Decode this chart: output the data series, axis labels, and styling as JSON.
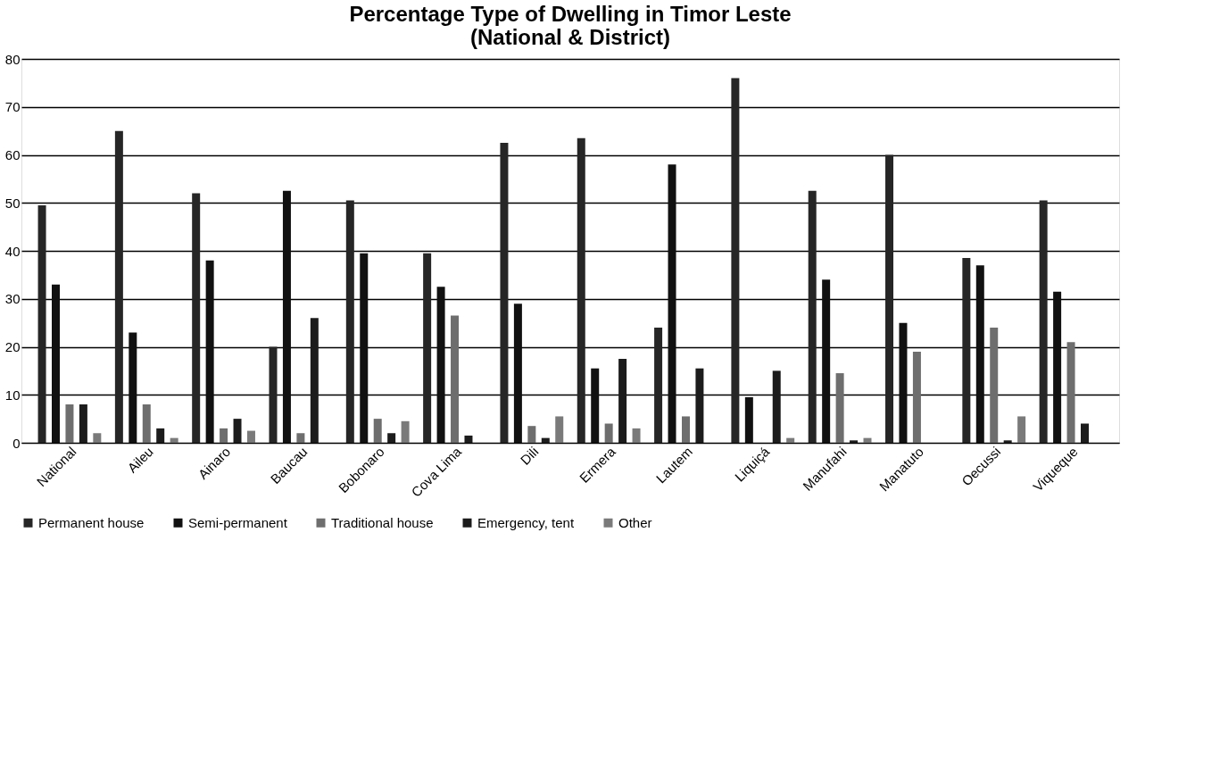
{
  "chart_data": {
    "type": "bar",
    "title": [
      "Percentage Type of Dwelling in Timor Leste",
      "(National & District)"
    ],
    "categories": [
      "National",
      "Aileu",
      "Ainaro",
      "Baucau",
      "Bobonaro",
      "Cova Lima",
      "Dili",
      "Ermera",
      "Lautem",
      "Liquiçá",
      "Manufahi",
      "Manatuto",
      "Oecussi",
      "Viqueque"
    ],
    "series": [
      {
        "name": "Permanent house",
        "color": "#262626",
        "values": [
          49.5,
          65,
          52,
          20,
          50.5,
          39.5,
          62.5,
          63.5,
          24,
          76,
          52.5,
          60,
          38.5,
          50.5
        ]
      },
      {
        "name": "Semi-permanent",
        "color": "#111111",
        "values": [
          33,
          23,
          38,
          52.5,
          39.5,
          32.5,
          29,
          15.5,
          58,
          9.5,
          34,
          25,
          37,
          31.5
        ]
      },
      {
        "name": "Traditional house",
        "color": "#6e6e6e",
        "values": [
          8,
          8,
          3,
          2,
          5,
          26.5,
          3.5,
          4,
          5.5,
          0,
          14.5,
          19,
          24,
          21
        ]
      },
      {
        "name": "Emergency, tent",
        "color": "#1c1c1c",
        "values": [
          8,
          3,
          5,
          26,
          2,
          1.5,
          1,
          17.5,
          15.5,
          15,
          0.5,
          0,
          0.5,
          4
        ]
      },
      {
        "name": "Other",
        "color": "#7a7a7a",
        "values": [
          2,
          1,
          2.5,
          0,
          4.5,
          0,
          5.5,
          3,
          0,
          1,
          1,
          0,
          5.5,
          0
        ]
      }
    ],
    "ylim": [
      0,
      80
    ],
    "yticks": [
      0,
      10,
      20,
      30,
      40,
      50,
      60,
      70,
      80
    ],
    "grid": "y",
    "legend": "bottom"
  }
}
